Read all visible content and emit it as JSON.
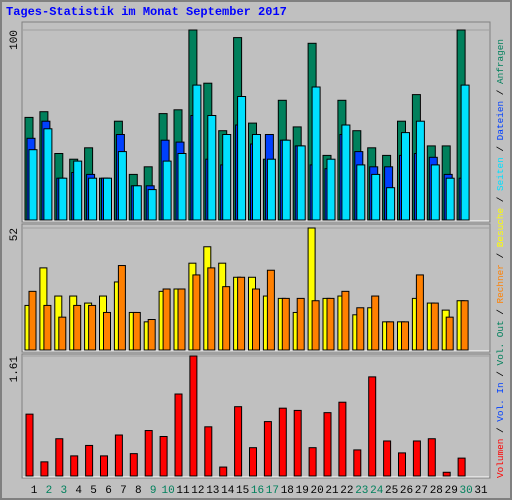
{
  "title": "Tages-Statistik im Monat September 2017",
  "legend_separator": " / ",
  "chart_data": [
    {
      "type": "bar",
      "ylim": [
        0,
        100
      ],
      "yticks": [
        100
      ],
      "series": [
        {
          "name": "Anfragen",
          "color": "#00805c",
          "values": [
            54,
            57,
            35,
            32,
            38,
            22,
            52,
            24,
            28,
            56,
            58,
            100,
            72,
            47,
            96,
            51,
            32,
            63,
            49,
            93,
            34,
            63,
            47,
            38,
            34,
            52,
            66,
            39,
            39,
            100,
            null
          ]
        },
        {
          "name": "Dateien",
          "color": "#0040ff",
          "values": [
            43,
            52,
            22,
            25,
            24,
            22,
            45,
            18,
            18,
            42,
            41,
            55,
            32,
            29,
            50,
            40,
            45,
            42,
            39,
            29,
            27,
            45,
            36,
            28,
            28,
            34,
            35,
            33,
            24,
            22,
            null
          ]
        },
        {
          "name": "Seiten",
          "color": "#00e0ff",
          "values": [
            37,
            48,
            22,
            31,
            22,
            22,
            36,
            18,
            16,
            31,
            35,
            71,
            55,
            45,
            65,
            45,
            32,
            42,
            39,
            70,
            32,
            50,
            29,
            24,
            17,
            46,
            52,
            29,
            22,
            71,
            null
          ]
        }
      ]
    },
    {
      "type": "bar",
      "ylim": [
        0,
        52
      ],
      "yticks": [
        52
      ],
      "series": [
        {
          "name": "Besuche",
          "color": "#ffff00",
          "values": [
            19,
            35,
            23,
            23,
            20,
            23,
            29,
            16,
            12,
            25,
            26,
            37,
            44,
            37,
            31,
            31,
            23,
            22,
            16,
            52,
            22,
            23,
            15,
            18,
            12,
            12,
            22,
            20,
            17,
            21,
            null
          ]
        },
        {
          "name": "Rechner",
          "color": "#ff8000",
          "values": [
            25,
            19,
            14,
            19,
            19,
            16,
            36,
            16,
            13,
            26,
            26,
            32,
            35,
            27,
            31,
            26,
            34,
            22,
            22,
            21,
            22,
            25,
            18,
            23,
            12,
            12,
            32,
            20,
            14,
            21,
            null
          ]
        }
      ]
    },
    {
      "type": "bar",
      "ylim": [
        0,
        1.61
      ],
      "yticks": [
        1.61
      ],
      "categories": [
        "1",
        "2",
        "3",
        "4",
        "5",
        "6",
        "7",
        "8",
        "9",
        "10",
        "11",
        "12",
        "13",
        "14",
        "15",
        "16",
        "17",
        "18",
        "19",
        "20",
        "21",
        "22",
        "23",
        "24",
        "25",
        "26",
        "27",
        "28",
        "29",
        "30",
        "31"
      ],
      "category_color": "#000000",
      "highlight_color": "#00805c",
      "highlight_categories": [
        1,
        2,
        8,
        9,
        15,
        16,
        22,
        23,
        29
      ],
      "series": [
        {
          "name": "Volumen",
          "color": "#ff0000",
          "values": [
            0.83,
            0.19,
            0.5,
            0.27,
            0.41,
            0.27,
            0.55,
            0.3,
            0.61,
            0.53,
            1.1,
            1.61,
            0.66,
            0.12,
            0.93,
            0.38,
            0.73,
            0.91,
            0.88,
            0.38,
            0.85,
            0.99,
            0.35,
            1.33,
            0.47,
            0.31,
            0.47,
            0.5,
            0.05,
            0.24,
            null
          ]
        }
      ],
      "legend": [
        {
          "name": "Vol. In",
          "color": "#0040ff"
        },
        {
          "name": "Vol. Out",
          "color": "#00805c"
        }
      ]
    }
  ]
}
